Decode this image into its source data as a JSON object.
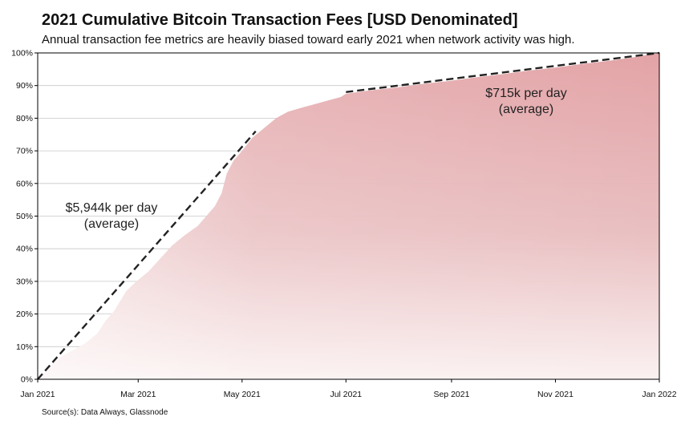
{
  "title": "2021 Cumulative Bitcoin Transaction Fees [USD Denominated]",
  "subtitle": "Annual transaction fee metrics are heavily biased toward early 2021 when network activity was high.",
  "source": "Source(s): Data Always, Glassnode",
  "chart_data": {
    "type": "area",
    "title": "2021 Cumulative Bitcoin Transaction Fees [USD Denominated]",
    "subtitle": "Annual transaction fee metrics are heavily biased toward early 2021 when network activity was high.",
    "xlabel": "",
    "ylabel": "",
    "x_range": [
      "2021-01-01",
      "2022-01-01"
    ],
    "ylim": [
      0,
      100
    ],
    "y_unit": "%",
    "x_ticks": [
      {
        "date": "2021-01-01",
        "label": "Jan 2021"
      },
      {
        "date": "2021-03-01",
        "label": "Mar 2021"
      },
      {
        "date": "2021-05-01",
        "label": "May 2021"
      },
      {
        "date": "2021-07-01",
        "label": "Jul 2021"
      },
      {
        "date": "2021-09-01",
        "label": "Sep 2021"
      },
      {
        "date": "2021-11-01",
        "label": "Nov 2021"
      },
      {
        "date": "2022-01-01",
        "label": "Jan 2022"
      }
    ],
    "y_ticks": [
      {
        "value": 0,
        "label": "0%"
      },
      {
        "value": 10,
        "label": "10%"
      },
      {
        "value": 20,
        "label": "20%"
      },
      {
        "value": 30,
        "label": "30%"
      },
      {
        "value": 40,
        "label": "40%"
      },
      {
        "value": 50,
        "label": "50%"
      },
      {
        "value": 60,
        "label": "60%"
      },
      {
        "value": 70,
        "label": "70%"
      },
      {
        "value": 80,
        "label": "80%"
      },
      {
        "value": 90,
        "label": "90%"
      },
      {
        "value": 100,
        "label": "100%"
      }
    ],
    "grid": true,
    "series": [
      {
        "color": "#e3a3a6",
        "points": [
          [
            "2021-01-01",
            0
          ],
          [
            "2021-01-05",
            2
          ],
          [
            "2021-01-10",
            5
          ],
          [
            "2021-01-15",
            7
          ],
          [
            "2021-01-22",
            9
          ],
          [
            "2021-01-29",
            11
          ],
          [
            "2021-02-05",
            14
          ],
          [
            "2021-02-10",
            18
          ],
          [
            "2021-02-15",
            21
          ],
          [
            "2021-02-22",
            27
          ],
          [
            "2021-02-28",
            30
          ],
          [
            "2021-03-07",
            33
          ],
          [
            "2021-03-14",
            37
          ],
          [
            "2021-03-21",
            41
          ],
          [
            "2021-03-28",
            44
          ],
          [
            "2021-04-05",
            47
          ],
          [
            "2021-04-10",
            50
          ],
          [
            "2021-04-15",
            53
          ],
          [
            "2021-04-19",
            57
          ],
          [
            "2021-04-22",
            63
          ],
          [
            "2021-04-26",
            67
          ],
          [
            "2021-05-01",
            70
          ],
          [
            "2021-05-07",
            74
          ],
          [
            "2021-05-14",
            77
          ],
          [
            "2021-05-21",
            80
          ],
          [
            "2021-05-28",
            82
          ],
          [
            "2021-06-07",
            83.5
          ],
          [
            "2021-06-14",
            84.5
          ],
          [
            "2021-06-21",
            85.5
          ],
          [
            "2021-06-28",
            86.5
          ],
          [
            "2021-07-01",
            87.5
          ],
          [
            "2021-07-15",
            88.5
          ],
          [
            "2021-08-01",
            89.5
          ],
          [
            "2021-08-15",
            90.5
          ],
          [
            "2021-09-01",
            91.5
          ],
          [
            "2021-09-15",
            92.5
          ],
          [
            "2021-10-01",
            93.5
          ],
          [
            "2021-10-15",
            94.5
          ],
          [
            "2021-11-01",
            95.5
          ],
          [
            "2021-11-15",
            96.5
          ],
          [
            "2021-12-01",
            97.5
          ],
          [
            "2021-12-15",
            98.5
          ],
          [
            "2022-01-01",
            100
          ]
        ]
      }
    ],
    "trend_lines": [
      {
        "style": "dashed",
        "color": "#222222",
        "from": [
          "2021-01-01",
          0
        ],
        "to": [
          "2021-05-09",
          76
        ]
      },
      {
        "style": "dashed",
        "color": "#222222",
        "from": [
          "2021-07-01",
          88
        ],
        "to": [
          "2022-01-01",
          100
        ]
      }
    ],
    "annotations": [
      {
        "lines": [
          "$5,944k per day",
          "(average)"
        ]
      },
      {
        "lines": [
          "$715k per day",
          "(average)"
        ]
      }
    ]
  }
}
